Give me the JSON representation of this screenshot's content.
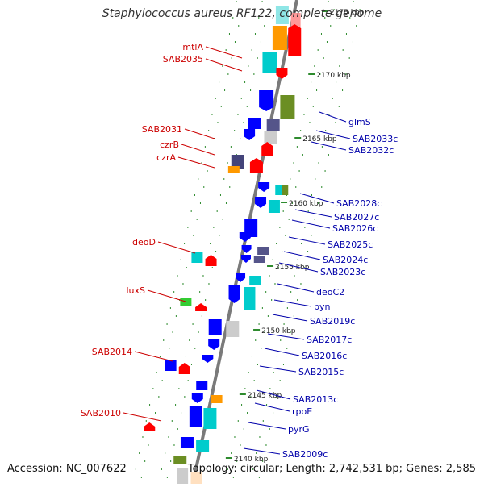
{
  "header": {
    "title": "Staphylococcus aureus RF122, complete genome"
  },
  "footer": {
    "accession": "Accession: NC_007622",
    "topology": "Topology: circular; Length: 2,742,531 bp; Genes: 2,585"
  },
  "colors": {
    "left_label": "#cc0000",
    "right_label": "#0000aa",
    "backbone": "#7a7a7a",
    "tick_dot": "#2e8b2e"
  },
  "kbp_markers": [
    "2175 kbp",
    "2170 kbp",
    "2165 kbp",
    "2160 kbp",
    "2155 kbp",
    "2150 kbp",
    "2145 kbp",
    "2140 kbp"
  ],
  "left_labels": [
    "mtlA",
    "SAB2035",
    "SAB2031",
    "czrB",
    "czrA",
    "deoD",
    "luxS",
    "SAB2014",
    "SAB2010"
  ],
  "right_labels": [
    "glmS",
    "SAB2033c",
    "SAB2032c",
    "SAB2028c",
    "SAB2027c",
    "SAB2026c",
    "SAB2025c",
    "SAB2024c",
    "SAB2023c",
    "deoC2",
    "pyn",
    "SAB2019c",
    "SAB2017c",
    "SAB2016c",
    "SAB2015c",
    "SAB2013c",
    "rpoE",
    "pyrG",
    "SAB2009c"
  ]
}
